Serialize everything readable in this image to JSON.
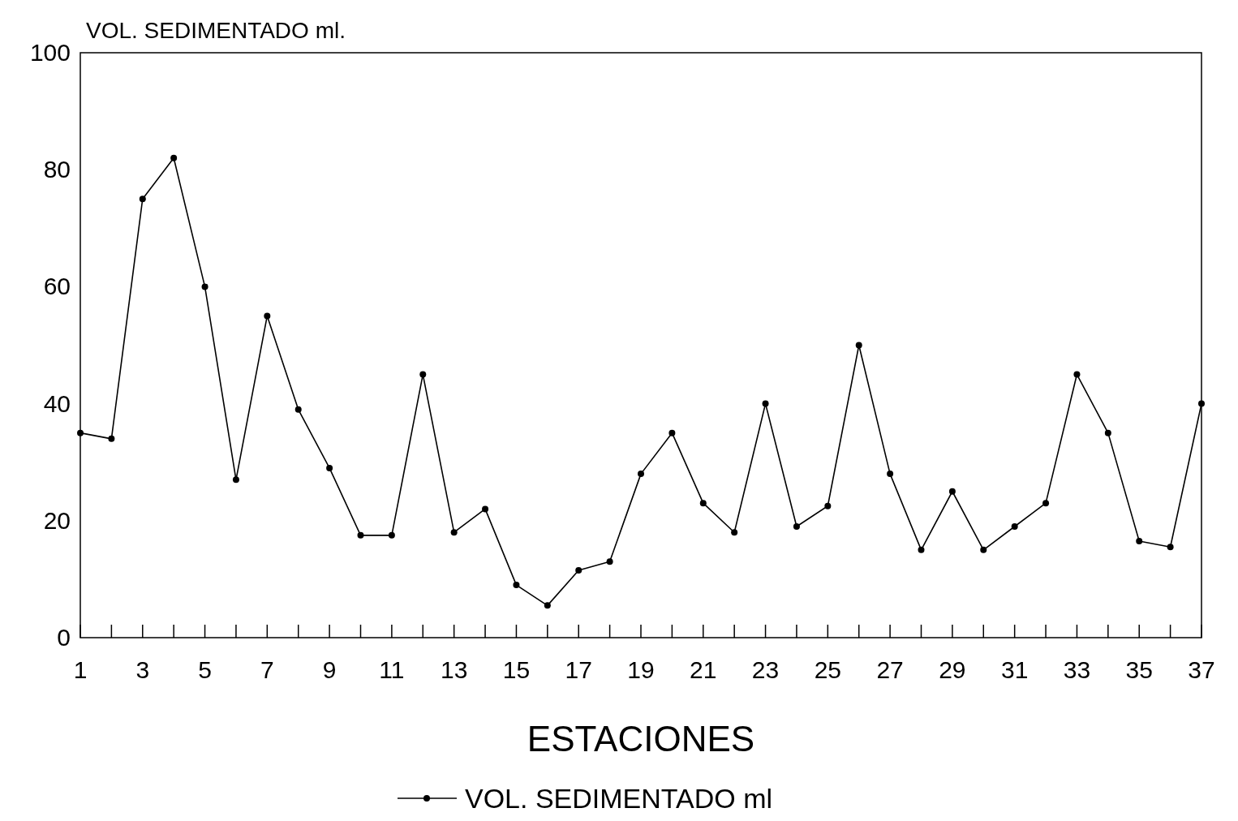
{
  "chart_data": {
    "type": "line",
    "ylabel": "VOL. SEDIMENTADO ml.",
    "xlabel": "ESTACIONES",
    "x": [
      1,
      2,
      3,
      4,
      5,
      6,
      7,
      8,
      9,
      10,
      11,
      12,
      13,
      14,
      15,
      16,
      17,
      18,
      19,
      20,
      21,
      22,
      23,
      24,
      25,
      26,
      27,
      28,
      29,
      30,
      31,
      32,
      33,
      34,
      35,
      36,
      37
    ],
    "series": [
      {
        "name": "VOL. SEDIMENTADO ml",
        "color": "#000000",
        "values": [
          35,
          34,
          75,
          82,
          60,
          27,
          55,
          39,
          29,
          17.5,
          17.5,
          45,
          18,
          22,
          9,
          5.5,
          11.5,
          13,
          28,
          35,
          23,
          18,
          40,
          19,
          22.5,
          50,
          28,
          15,
          25,
          15,
          19,
          23,
          45,
          35,
          16.5,
          15.5,
          40
        ]
      }
    ],
    "xlim": [
      1,
      37
    ],
    "xticks": [
      1,
      {
        "value": 2,
        "label": null
      },
      3,
      {
        "value": 4,
        "label": null
      },
      5,
      {
        "value": 6,
        "label": null
      },
      7,
      {
        "value": 8,
        "label": null
      },
      9,
      {
        "value": 10,
        "label": null
      },
      11,
      {
        "value": 12,
        "label": null
      },
      13,
      {
        "value": 14,
        "label": null
      },
      15,
      {
        "value": 16,
        "label": null
      },
      17,
      {
        "value": 18,
        "label": null
      },
      19,
      {
        "value": 20,
        "label": null
      },
      21,
      {
        "value": 22,
        "label": null
      },
      23,
      {
        "value": 24,
        "label": null
      },
      25,
      {
        "value": 26,
        "label": null
      },
      27,
      {
        "value": 28,
        "label": null
      },
      29,
      {
        "value": 30,
        "label": null
      },
      31,
      {
        "value": 32,
        "label": null
      },
      33,
      {
        "value": 34,
        "label": null
      },
      35,
      {
        "value": 36,
        "label": null
      },
      37
    ],
    "ylim": [
      0,
      100
    ],
    "yticks": [
      0,
      20,
      40,
      60,
      80,
      100
    ],
    "grid": false,
    "legend": "bottom",
    "marker": "circle",
    "line_style": "solid"
  }
}
